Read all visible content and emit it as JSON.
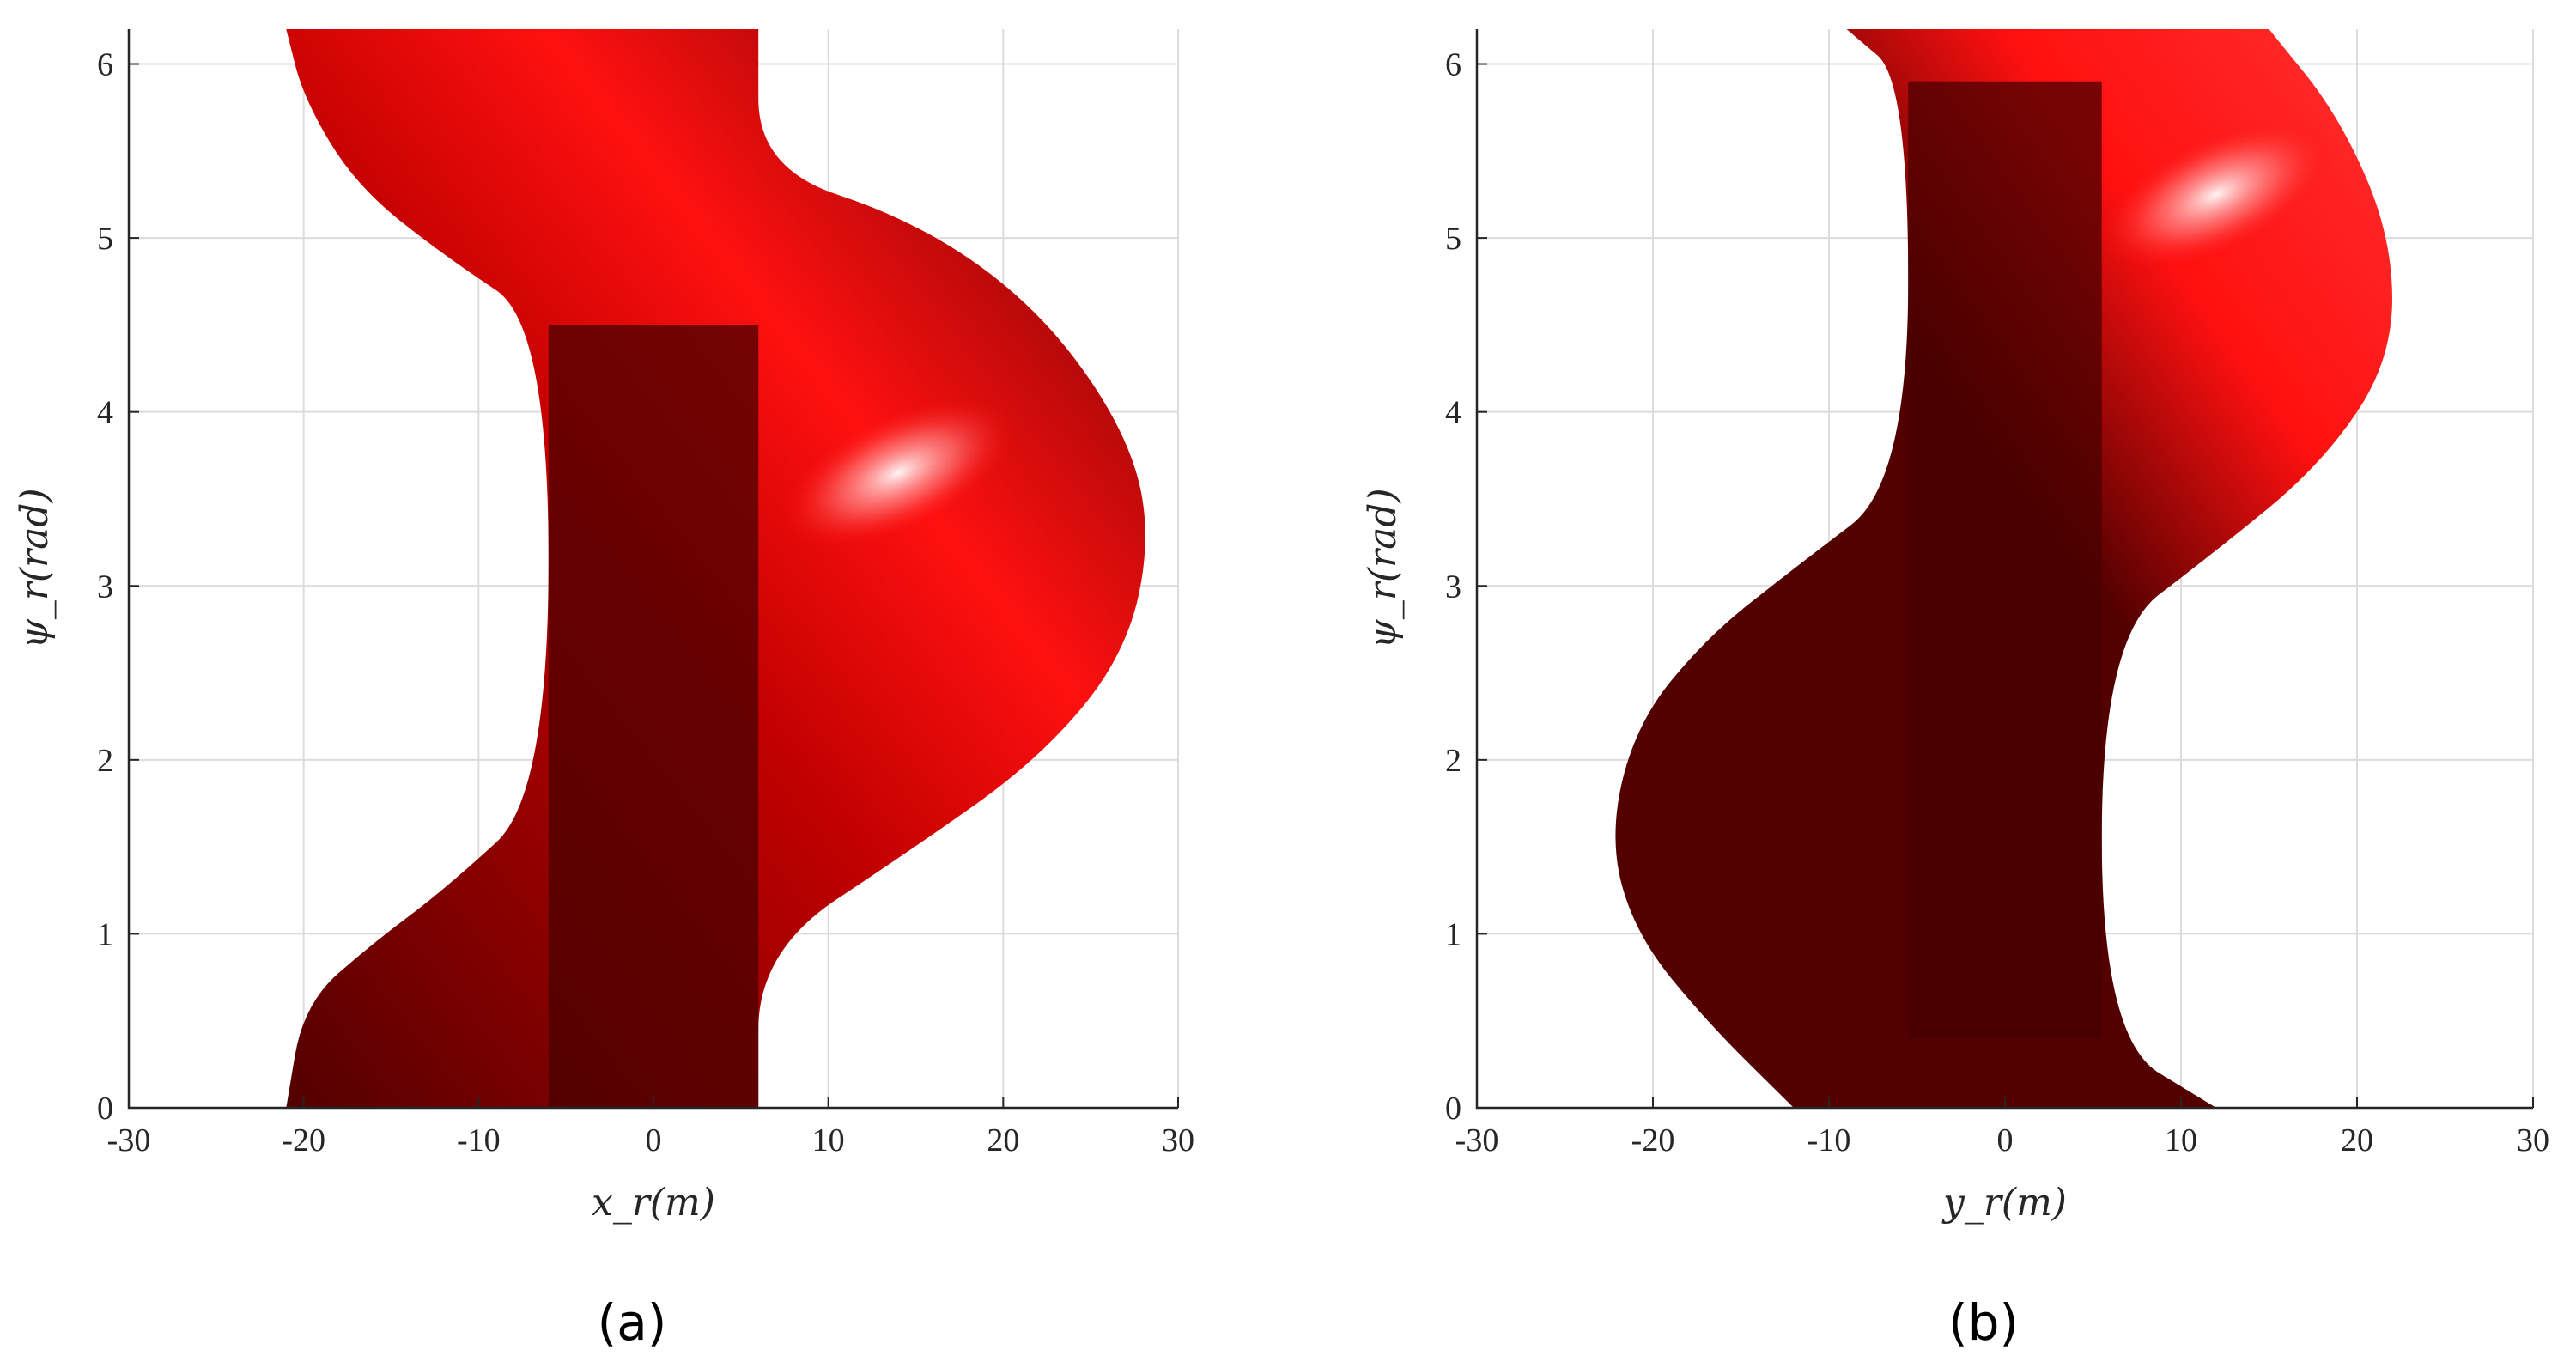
{
  "chart_data": [
    {
      "type": "area",
      "panel_label": "(a)",
      "xlabel": "x_r(m)",
      "ylabel": "ψ_r(rad)",
      "xlim": [
        -30,
        30
      ],
      "ylim": [
        0,
        6.2
      ],
      "xticks": [
        "-30",
        "-20",
        "-10",
        "0",
        "10",
        "20",
        "30"
      ],
      "yticks": [
        "0",
        "1",
        "2",
        "3",
        "4",
        "5",
        "6"
      ],
      "grid": true,
      "colors": {
        "surface_dark": "#520000",
        "surface_bright": "#ff0a0a",
        "highlight": "#ffffff"
      },
      "regions": [
        {
          "name": "",
          "left": [
            [
              -21,
              0
            ],
            [
              -20,
              0.6
            ],
            [
              -16,
              0.95
            ],
            [
              -12,
              1.25
            ],
            [
              -6,
              1.8
            ],
            [
              -6,
              4.5
            ],
            [
              -12,
              4.9
            ],
            [
              -17,
              5.3
            ],
            [
              -20,
              5.8
            ],
            [
              -21,
              6.2
            ]
          ],
          "right": [
            [
              6,
              0
            ],
            [
              6,
              0.9
            ],
            [
              15,
              1.5
            ],
            [
              22,
              2.0
            ],
            [
              27,
              2.6
            ],
            [
              28.5,
              3.3
            ],
            [
              27,
              3.9
            ],
            [
              22,
              4.6
            ],
            [
              15,
              5.1
            ],
            [
              6,
              5.4
            ],
            [
              6,
              6.2
            ]
          ]
        }
      ]
    },
    {
      "type": "area",
      "panel_label": "(b)",
      "xlabel": "y_r(m)",
      "ylabel": "ψ_r(rad)",
      "xlim": [
        -30,
        30
      ],
      "ylim": [
        0,
        6.2
      ],
      "xticks": [
        "-30",
        "-20",
        "-10",
        "0",
        "10",
        "20",
        "30"
      ],
      "yticks": [
        "0",
        "1",
        "2",
        "3",
        "4",
        "5",
        "6"
      ],
      "grid": true,
      "colors": {
        "surface_dark": "#520000",
        "surface_bright": "#ff0a0a",
        "highlight": "#ffffff"
      },
      "regions": [
        {
          "name": "",
          "left": [
            [
              -12,
              0
            ],
            [
              -17,
              0.5
            ],
            [
              -21,
              1.0
            ],
            [
              -22.5,
              1.55
            ],
            [
              -21,
              2.2
            ],
            [
              -17,
              2.7
            ],
            [
              -12,
              3.1
            ],
            [
              -5.5,
              3.6
            ],
            [
              -5.5,
              5.9
            ],
            [
              -9,
              6.2
            ]
          ],
          "right": [
            [
              12,
              0
            ],
            [
              5.5,
              0.4
            ],
            [
              5.5,
              2.7
            ],
            [
              12,
              3.2
            ],
            [
              18,
              3.7
            ],
            [
              22,
              4.3
            ],
            [
              22,
              5.0
            ],
            [
              19,
              5.7
            ],
            [
              15,
              6.2
            ]
          ]
        }
      ]
    }
  ]
}
